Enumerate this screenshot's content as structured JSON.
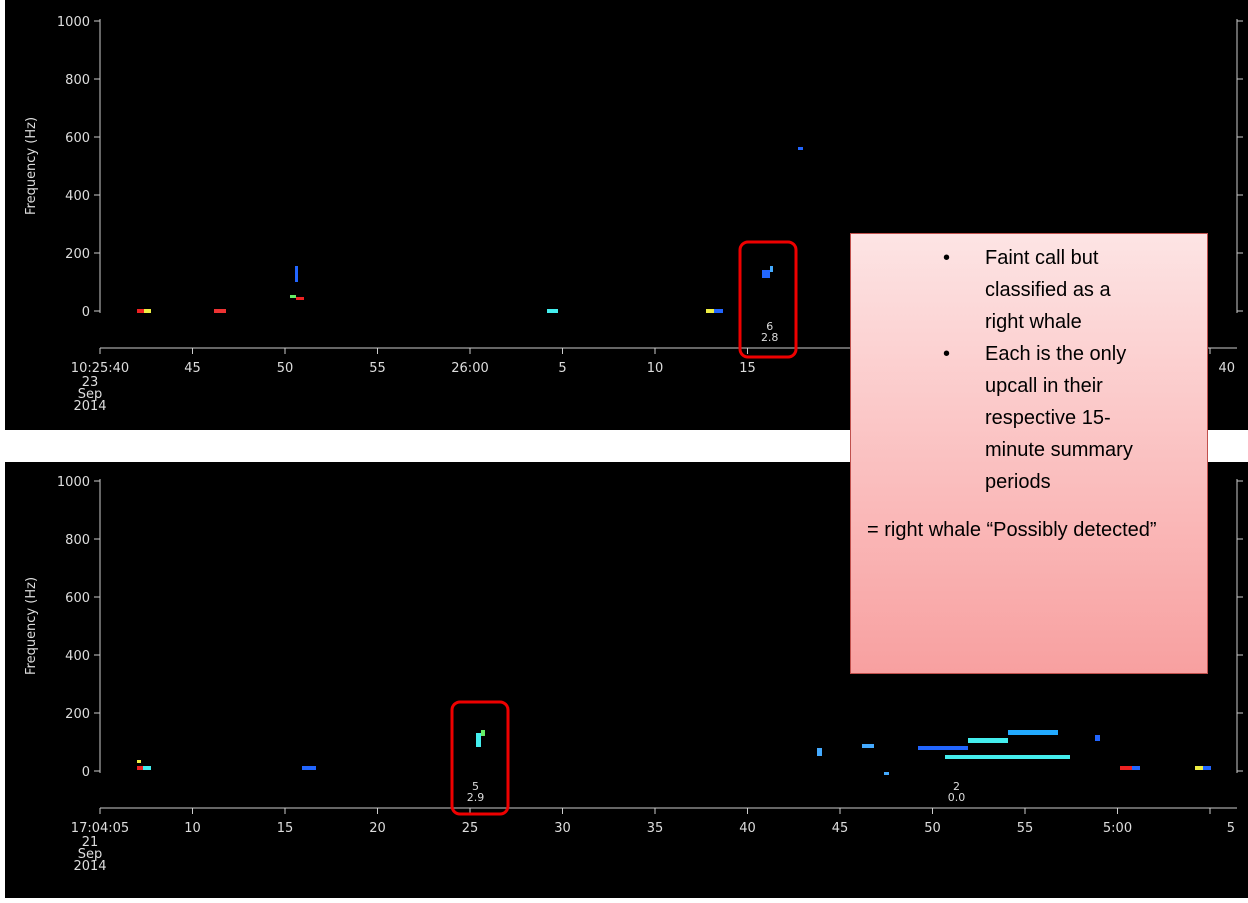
{
  "panels": [
    {
      "y_axis_label": "Frequency (Hz)",
      "yticks": [
        0,
        200,
        400,
        600,
        800,
        1000
      ],
      "xticks": [
        {
          "value": 0,
          "label": "10:25:40"
        },
        {
          "value": 5,
          "label": "45"
        },
        {
          "value": 10,
          "label": "50"
        },
        {
          "value": 15,
          "label": "55"
        },
        {
          "value": 20,
          "label": "26:00"
        },
        {
          "value": 25,
          "label": "5"
        },
        {
          "value": 30,
          "label": "10"
        },
        {
          "value": 35,
          "label": "15"
        },
        {
          "value": 60,
          "label": "40"
        }
      ],
      "date": [
        "23",
        "Sep",
        "2014"
      ],
      "detections": [
        {
          "time": 36.2,
          "count": "6",
          "score": "2.8"
        }
      ]
    },
    {
      "y_axis_label": "Frequency (Hz)",
      "yticks": [
        0,
        200,
        400,
        600,
        800,
        1000
      ],
      "xticks": [
        {
          "value": 0,
          "label": "17:04:05"
        },
        {
          "value": 5,
          "label": "10"
        },
        {
          "value": 10,
          "label": "15"
        },
        {
          "value": 15,
          "label": "20"
        },
        {
          "value": 20,
          "label": "25"
        },
        {
          "value": 25,
          "label": "30"
        },
        {
          "value": 30,
          "label": "35"
        },
        {
          "value": 35,
          "label": "40"
        },
        {
          "value": 40,
          "label": "45"
        },
        {
          "value": 45,
          "label": "50"
        },
        {
          "value": 50,
          "label": "55"
        },
        {
          "value": 55,
          "label": "5:00"
        },
        {
          "value": 60,
          "label": "5"
        }
      ],
      "date": [
        "21",
        "Sep",
        "2014"
      ],
      "detections": [
        {
          "time": 20.3,
          "count": "5",
          "score": "2.9"
        },
        {
          "time": 46.3,
          "count": "2",
          "score": "0.0"
        }
      ]
    }
  ],
  "annotation": {
    "bullets": [
      "Faint call but classified as a right whale",
      "Each is the only upcall in their respective 15-minute summary periods"
    ],
    "conclusion": "= right whale “Possibly detected”"
  }
}
